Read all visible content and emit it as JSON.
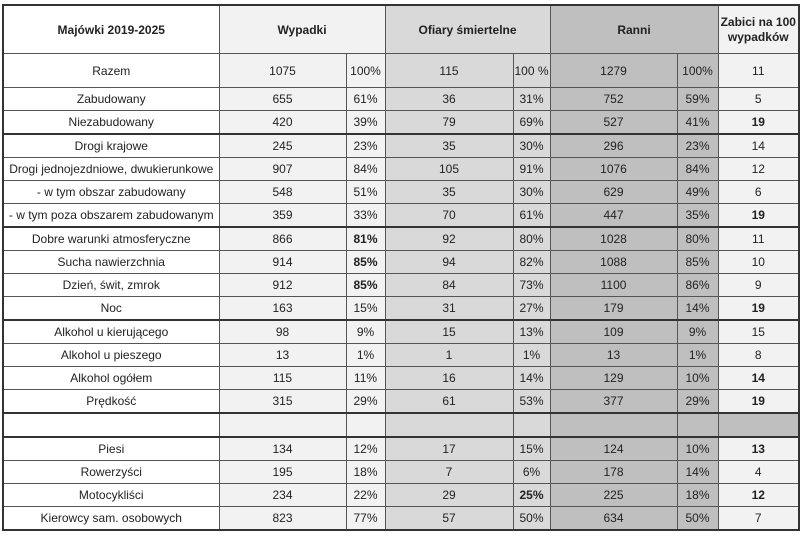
{
  "header": {
    "label": "Majówki 2019-2025",
    "wypadki": "Wypadki",
    "ofiary": "Ofiary śmiertelne",
    "ranni": "Ranni",
    "zabici": "Zabici na 100 wypadków"
  },
  "colors": {
    "wypadki": "#f2f2f2",
    "ofiary": "#d9d9d9",
    "ranni": "#bfbfbf"
  },
  "rows": [
    {
      "cells": [
        "Razem",
        "1075",
        "100%",
        "115",
        "100 %",
        "1279",
        "100%",
        "11"
      ],
      "bold": []
    },
    {
      "cells": [
        "Zabudowany",
        "655",
        "61%",
        "36",
        "31%",
        "752",
        "59%",
        "5"
      ],
      "bold": []
    },
    {
      "cells": [
        "Niezabudowany",
        "420",
        "39%",
        "79",
        "69%",
        "527",
        "41%",
        "19"
      ],
      "bold": [
        7
      ]
    },
    {
      "cells": [
        "Drogi krajowe",
        "245",
        "23%",
        "35",
        "30%",
        "296",
        "23%",
        "14"
      ],
      "bold": []
    },
    {
      "cells": [
        "Drogi jednojezdniowe, dwukierunkowe",
        "907",
        "84%",
        "105",
        "91%",
        "1076",
        "84%",
        "12"
      ],
      "bold": []
    },
    {
      "cells": [
        "- w tym obszar zabudowany",
        "548",
        "51%",
        "35",
        "30%",
        "629",
        "49%",
        "6"
      ],
      "bold": []
    },
    {
      "cells": [
        "- w tym poza obszarem zabudowanym",
        "359",
        "33%",
        "70",
        "61%",
        "447",
        "35%",
        "19"
      ],
      "bold": [
        7
      ]
    },
    {
      "cells": [
        "Dobre warunki atmosferyczne",
        "866",
        "81%",
        "92",
        "80%",
        "1028",
        "80%",
        "11"
      ],
      "bold": [
        2
      ]
    },
    {
      "cells": [
        "Sucha nawierzchnia",
        "914",
        "85%",
        "94",
        "82%",
        "1088",
        "85%",
        "10"
      ],
      "bold": [
        2
      ]
    },
    {
      "cells": [
        "Dzień, świt, zmrok",
        "912",
        "85%",
        "84",
        "73%",
        "1100",
        "86%",
        "9"
      ],
      "bold": [
        2
      ]
    },
    {
      "cells": [
        "Noc",
        "163",
        "15%",
        "31",
        "27%",
        "179",
        "14%",
        "19"
      ],
      "bold": [
        7
      ]
    },
    {
      "cells": [
        "Alkohol u kierującego",
        "98",
        "9%",
        "15",
        "13%",
        "109",
        "9%",
        "15"
      ],
      "bold": []
    },
    {
      "cells": [
        "Alkohol u pieszego",
        "13",
        "1%",
        "1",
        "1%",
        "13",
        "1%",
        "8"
      ],
      "bold": []
    },
    {
      "cells": [
        "Alkohol ogółem",
        "115",
        "11%",
        "16",
        "14%",
        "129",
        "10%",
        "14"
      ],
      "bold": [
        7
      ]
    },
    {
      "cells": [
        "Prędkość",
        "315",
        "29%",
        "61",
        "53%",
        "377",
        "29%",
        "19"
      ],
      "bold": [
        7
      ]
    },
    {
      "cells": [
        "",
        "",
        "",
        "",
        "",
        "",
        "",
        ""
      ],
      "bold": []
    },
    {
      "cells": [
        "Piesi",
        "134",
        "12%",
        "17",
        "15%",
        "124",
        "10%",
        "13"
      ],
      "bold": [
        7
      ]
    },
    {
      "cells": [
        "Rowerzyści",
        "195",
        "18%",
        "7",
        "6%",
        "178",
        "14%",
        "4"
      ],
      "bold": []
    },
    {
      "cells": [
        "Motocykliści",
        "234",
        "22%",
        "29",
        "25%",
        "225",
        "18%",
        "12"
      ],
      "bold": [
        4,
        7
      ]
    },
    {
      "cells": [
        "Kierowcy sam. osobowych",
        "823",
        "77%",
        "57",
        "50%",
        "634",
        "50%",
        "7"
      ],
      "bold": []
    }
  ]
}
